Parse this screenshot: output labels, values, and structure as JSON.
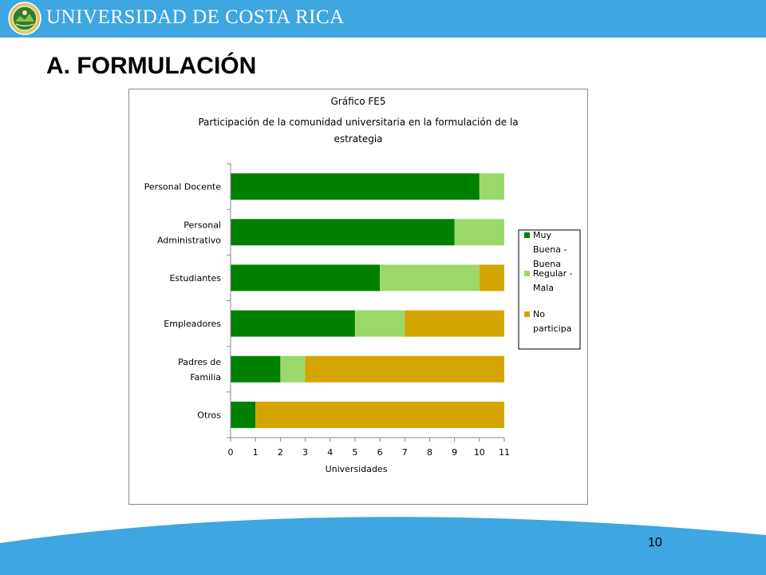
{
  "header": {
    "university_name": "UNIVERSIDAD DE COSTA RICA",
    "brand_color": "#3ea6e0"
  },
  "section_title": "A. FORMULACIÓN",
  "page_number": "10",
  "chart_data": {
    "type": "bar",
    "orientation": "horizontal",
    "stacked": true,
    "title_lines": [
      "Gráfico FE5",
      "Participación de la comunidad universitaria en la formulación de la",
      "estrategia"
    ],
    "categories": [
      [
        "Personal Docente"
      ],
      [
        "Personal",
        "Administrativo"
      ],
      [
        "Estudiantes"
      ],
      [
        "Empleadores"
      ],
      [
        "Padres de",
        "Familia"
      ],
      [
        "Otros"
      ]
    ],
    "series": [
      {
        "name_lines": [
          "Muy",
          "Buena -",
          "Buena"
        ],
        "color": "#008000",
        "values": [
          10,
          9,
          6,
          5,
          2,
          1
        ]
      },
      {
        "name_lines": [
          "Regular -",
          "Mala"
        ],
        "color": "#9bd86a",
        "values": [
          1,
          2,
          4,
          2,
          1,
          0
        ]
      },
      {
        "name_lines": [
          "No",
          "participa"
        ],
        "color": "#d4a400",
        "values": [
          0,
          0,
          1,
          4,
          8,
          10
        ]
      }
    ],
    "xlabel": "Universidades",
    "xlim": [
      0,
      11
    ],
    "xticks": [
      "0",
      "1",
      "2",
      "3",
      "4",
      "5",
      "6",
      "7",
      "8",
      "9",
      "10",
      "11"
    ],
    "grid": false,
    "legend_position": "right"
  }
}
